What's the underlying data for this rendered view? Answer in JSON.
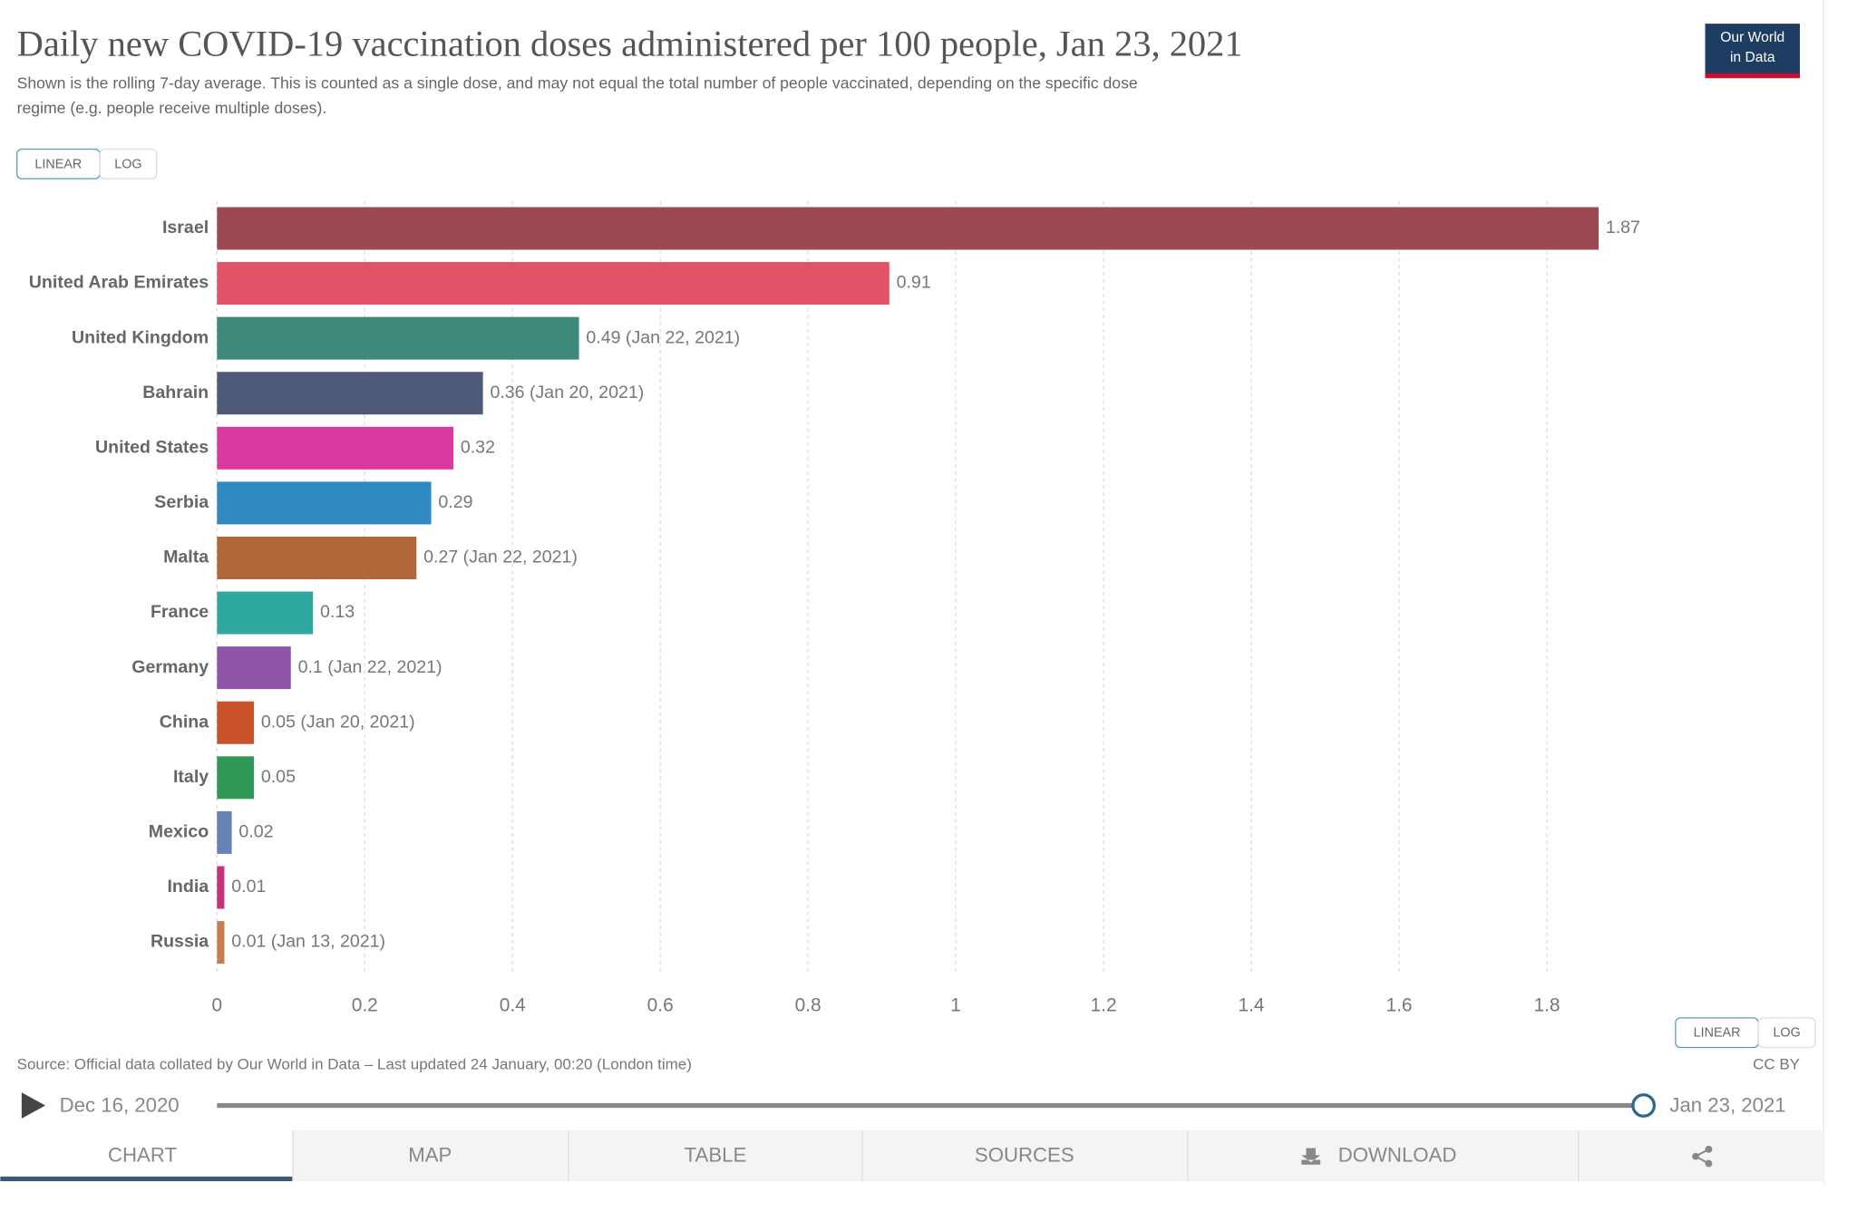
{
  "chart_data": {
    "type": "hbar",
    "title": "Daily new COVID-19 vaccination doses administered per 100 people, Jan 23, 2021",
    "subtitle": [
      "Shown is the rolling 7-day average. This is counted as a single dose, and may not equal the total number of people vaccinated, depending on the specific dose",
      "regime (e.g. people receive multiple doses)."
    ],
    "categories": [
      "Israel",
      "United Arab Emirates",
      "United Kingdom",
      "Bahrain",
      "United States",
      "Serbia",
      "Malta",
      "France",
      "Germany",
      "China",
      "Italy",
      "Mexico",
      "India",
      "Russia"
    ],
    "values": [
      1.87,
      0.91,
      0.49,
      0.36,
      0.32,
      0.29,
      0.27,
      0.13,
      0.1,
      0.05,
      0.05,
      0.02,
      0.01,
      0.01
    ],
    "value_labels": [
      "1.87",
      "0.91",
      "0.49 (Jan 22, 2021)",
      "0.36 (Jan 20, 2021)",
      "0.32",
      "0.29",
      "0.27 (Jan 22, 2021)",
      "0.13",
      "0.1 (Jan 22, 2021)",
      "0.05 (Jan 20, 2021)",
      "0.05",
      "0.02",
      "0.01",
      "0.01 (Jan 13, 2021)"
    ],
    "colors": [
      "#9b4a55",
      "#e05265",
      "#3d8a7a",
      "#4f5a78",
      "#d93aa0",
      "#2f8bbf",
      "#b0673a",
      "#2fa99e",
      "#8e54a8",
      "#c8532a",
      "#2f9a57",
      "#6682b6",
      "#c8327d",
      "#c97d4e"
    ],
    "xlim": [
      0,
      1.87
    ],
    "xticks": [
      0,
      0.2,
      0.4,
      0.6,
      0.8,
      1,
      1.2,
      1.4,
      1.6,
      1.8
    ],
    "grid": true,
    "source": "Source: Official data collated by Our World in Data – Last updated 24 January, 00:20 (London time)",
    "license": "CC BY"
  },
  "ui": {
    "logo": [
      "Our World",
      "in Data"
    ],
    "scale_buttons": [
      "LINEAR",
      "LOG"
    ],
    "timeline": {
      "start": "Dec 16, 2020",
      "end": "Jan 23, 2021"
    },
    "tabs": [
      "CHART",
      "MAP",
      "TABLE",
      "SOURCES",
      "DOWNLOAD"
    ]
  }
}
